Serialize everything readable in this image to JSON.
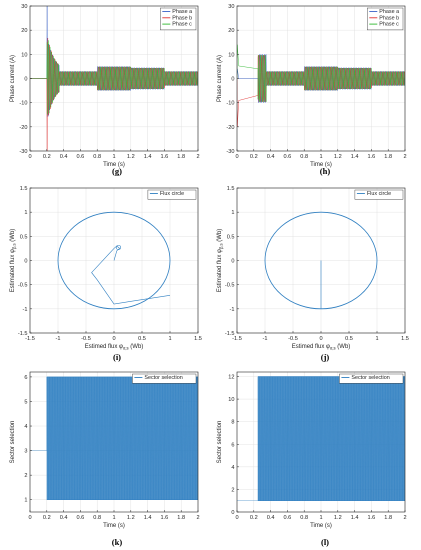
{
  "chart_data": [
    {
      "type": "line",
      "caption": "(g)",
      "xlabel": "Time (s)",
      "ylabel": "Phase current (A)",
      "xlim": [
        0,
        2
      ],
      "ylim": [
        -30,
        30
      ],
      "xticks": [
        "0",
        "0.2",
        "0.4",
        "0.6",
        "0.8",
        "1",
        "1.2",
        "1.4",
        "1.6",
        "1.8",
        "2"
      ],
      "yticks": [
        "-30",
        "-20",
        "-10",
        "0",
        "10",
        "20",
        "30"
      ],
      "grid": true,
      "legend": "top-right",
      "series": [
        {
          "name": "Phase a",
          "color": "#3a62c8"
        },
        {
          "name": "Phase b",
          "color": "#e03030"
        },
        {
          "name": "Phase c",
          "color": "#2fb82f"
        }
      ],
      "profile": {
        "start_time": 0.2,
        "startup_peak": 30,
        "startup_end": 0.35,
        "segments": [
          {
            "t0": 0.35,
            "t1": 0.8,
            "amplitude": 3
          },
          {
            "t0": 0.8,
            "t1": 1.2,
            "amplitude": 5
          },
          {
            "t0": 1.2,
            "t1": 1.6,
            "amplitude": 4.5
          },
          {
            "t0": 1.6,
            "t1": 2.0,
            "amplitude": 3
          }
        ]
      }
    },
    {
      "type": "line",
      "caption": "(h)",
      "xlabel": "Time (s)",
      "ylabel": "Phase current (A)",
      "xlim": [
        0,
        2
      ],
      "ylim": [
        -30,
        30
      ],
      "xticks": [
        "0",
        "0.2",
        "0.4",
        "0.6",
        "0.8",
        "1",
        "1.2",
        "1.4",
        "1.6",
        "1.8",
        "2"
      ],
      "yticks": [
        "-30",
        "-20",
        "-10",
        "0",
        "10",
        "20",
        "30"
      ],
      "grid": true,
      "legend": "top-right",
      "series": [
        {
          "name": "Phase a",
          "color": "#3a62c8"
        },
        {
          "name": "Phase b",
          "color": "#e03030"
        },
        {
          "name": "Phase c",
          "color": "#2fb82f"
        }
      ],
      "profile": {
        "dc_start": 0.0,
        "dc_end": 0.25,
        "dc_values": [
          0,
          -7,
          4
        ],
        "dc_peak": 20,
        "segments": [
          {
            "t0": 0.25,
            "t1": 0.35,
            "amplitude": 10
          },
          {
            "t0": 0.35,
            "t1": 0.8,
            "amplitude": 3
          },
          {
            "t0": 0.8,
            "t1": 1.2,
            "amplitude": 5
          },
          {
            "t0": 1.2,
            "t1": 1.6,
            "amplitude": 4.5
          },
          {
            "t0": 1.6,
            "t1": 2.0,
            "amplitude": 3
          }
        ]
      }
    },
    {
      "type": "line",
      "caption": "(i)",
      "xlabel": "Estimed flux φ_{α,s} (Wb)",
      "ylabel": "Estimated flux φ_{β,s} (Wb)",
      "xlim": [
        -1.5,
        1.5
      ],
      "ylim": [
        -1.5,
        1.5
      ],
      "xticks": [
        "-1.5",
        "-1",
        "-0.5",
        "0",
        "0.5",
        "1",
        "1.5"
      ],
      "yticks": [
        "-1.5",
        "-1",
        "-0.5",
        "0",
        "0.5",
        "1",
        "1.5"
      ],
      "grid": true,
      "legend": "top-right",
      "series": [
        {
          "name": "Flux circle",
          "color": "#2f7fc1"
        }
      ],
      "radius": 1,
      "transient": [
        [
          0,
          0
        ],
        [
          0.05,
          0.2
        ],
        [
          0.1,
          0.25
        ],
        [
          0.05,
          0.3
        ],
        [
          0,
          0.25
        ],
        [
          -0.4,
          -0.25
        ],
        [
          -0.3,
          -0.4
        ],
        [
          0,
          -0.9
        ],
        [
          1,
          -0.72
        ]
      ]
    },
    {
      "type": "line",
      "caption": "(j)",
      "xlabel": "Estimed flux φ_{α,s} (Wb)",
      "ylabel": "Estimated flux φ_{β,s} (Wb)",
      "xlim": [
        -1.5,
        1.5
      ],
      "ylim": [
        -1.5,
        1.5
      ],
      "xticks": [
        "-1.5",
        "-1",
        "-0.5",
        "0",
        "0.5",
        "1",
        "1.5"
      ],
      "yticks": [
        "-1.5",
        "-1",
        "-0.5",
        "0",
        "0.5",
        "1",
        "1.5"
      ],
      "grid": true,
      "legend": "top-right",
      "series": [
        {
          "name": "Flux circle",
          "color": "#2f7fc1"
        }
      ],
      "radius": 1,
      "transient": [
        [
          0,
          0
        ],
        [
          0,
          -1
        ]
      ]
    },
    {
      "type": "line",
      "caption": "(k)",
      "xlabel": "Time (s)",
      "ylabel": "Sector selection",
      "xlim": [
        0,
        2
      ],
      "ylim": [
        0.5,
        6.2
      ],
      "xticks": [
        "0",
        "0.2",
        "0.4",
        "0.6",
        "0.8",
        "1",
        "1.2",
        "1.4",
        "1.6",
        "1.8",
        "2"
      ],
      "yticks": [
        "1",
        "2",
        "3",
        "4",
        "5",
        "6"
      ],
      "grid": true,
      "legend": "top-right",
      "series": [
        {
          "name": "Sector selection",
          "color": "#2f7fc1"
        }
      ],
      "initial_value": 3,
      "switch_time": 0.2,
      "min": 1,
      "max": 6
    },
    {
      "type": "line",
      "caption": "(l)",
      "xlabel": "Time (s)",
      "ylabel": "Sector selection",
      "xlim": [
        0,
        2
      ],
      "ylim": [
        0,
        12.4
      ],
      "xticks": [
        "0",
        "0.2",
        "0.4",
        "0.6",
        "0.8",
        "1",
        "1.2",
        "1.4",
        "1.6",
        "1.8",
        "2"
      ],
      "yticks": [
        "0",
        "2",
        "4",
        "6",
        "8",
        "10",
        "12"
      ],
      "grid": true,
      "legend": "top-right",
      "series": [
        {
          "name": "Sector selection",
          "color": "#2f7fc1"
        }
      ],
      "initial_value": 1,
      "switch_time": 0.25,
      "min": 1,
      "max": 12
    }
  ]
}
